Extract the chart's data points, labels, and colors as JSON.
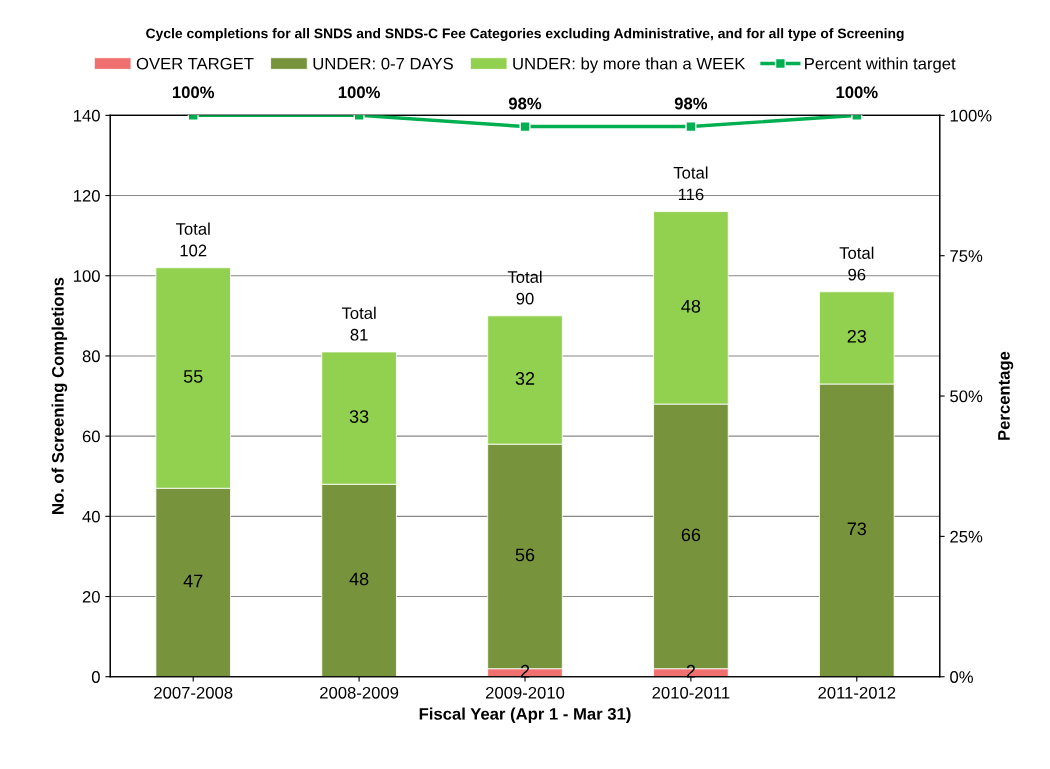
{
  "chart_data": {
    "type": "bar",
    "title": "Cycle completions for all SNDS and SNDS-C Fee Categories excluding Administrative, and for all type of Screening",
    "xlabel": "Fiscal Year (Apr 1 - Mar 31)",
    "ylabel": "No. of Screening Completions",
    "y2label": "Percentage",
    "categories": [
      "2007-2008",
      "2008-2009",
      "2009-2010",
      "2010-2011",
      "2011-2012"
    ],
    "stacked": true,
    "series": [
      {
        "name": "OVER TARGET",
        "color": "#f07070",
        "values": [
          0,
          0,
          2,
          2,
          0
        ],
        "value_labels": [
          null,
          null,
          "2",
          "2",
          null
        ]
      },
      {
        "name": "UNDER: 0-7 DAYS",
        "color": "#77933c",
        "values": [
          47,
          48,
          56,
          66,
          73
        ],
        "value_labels": [
          "47",
          "48",
          "56",
          "66",
          "73"
        ]
      },
      {
        "name": "UNDER: by more than a WEEK",
        "color": "#92d050",
        "values": [
          55,
          33,
          32,
          48,
          23
        ],
        "value_labels": [
          "55",
          "33",
          "32",
          "48",
          "23"
        ]
      },
      {
        "name": "Percent within target",
        "type": "line",
        "axis": "y2",
        "color": "#00b050",
        "values": [
          100,
          100,
          98,
          98,
          100
        ],
        "value_labels": [
          "100%",
          "100%",
          "98%",
          "98%",
          "100%"
        ]
      }
    ],
    "totals": [
      "Total\n102",
      "Total\n81",
      "Total\n90",
      "Total\n116",
      "Total\n96"
    ],
    "marker": "square",
    "ylim": [
      0,
      140
    ],
    "yticks": [
      0,
      20,
      40,
      60,
      80,
      100,
      120,
      140
    ],
    "y2lim": [
      0,
      100
    ],
    "y2ticks": [
      {
        "value": 0,
        "label": "0%"
      },
      {
        "value": 25,
        "label": "25%"
      },
      {
        "value": 50,
        "label": "50%"
      },
      {
        "value": 75,
        "label": "75%"
      },
      {
        "value": 100,
        "label": "100%"
      }
    ],
    "grid": "y",
    "legend": "top"
  }
}
